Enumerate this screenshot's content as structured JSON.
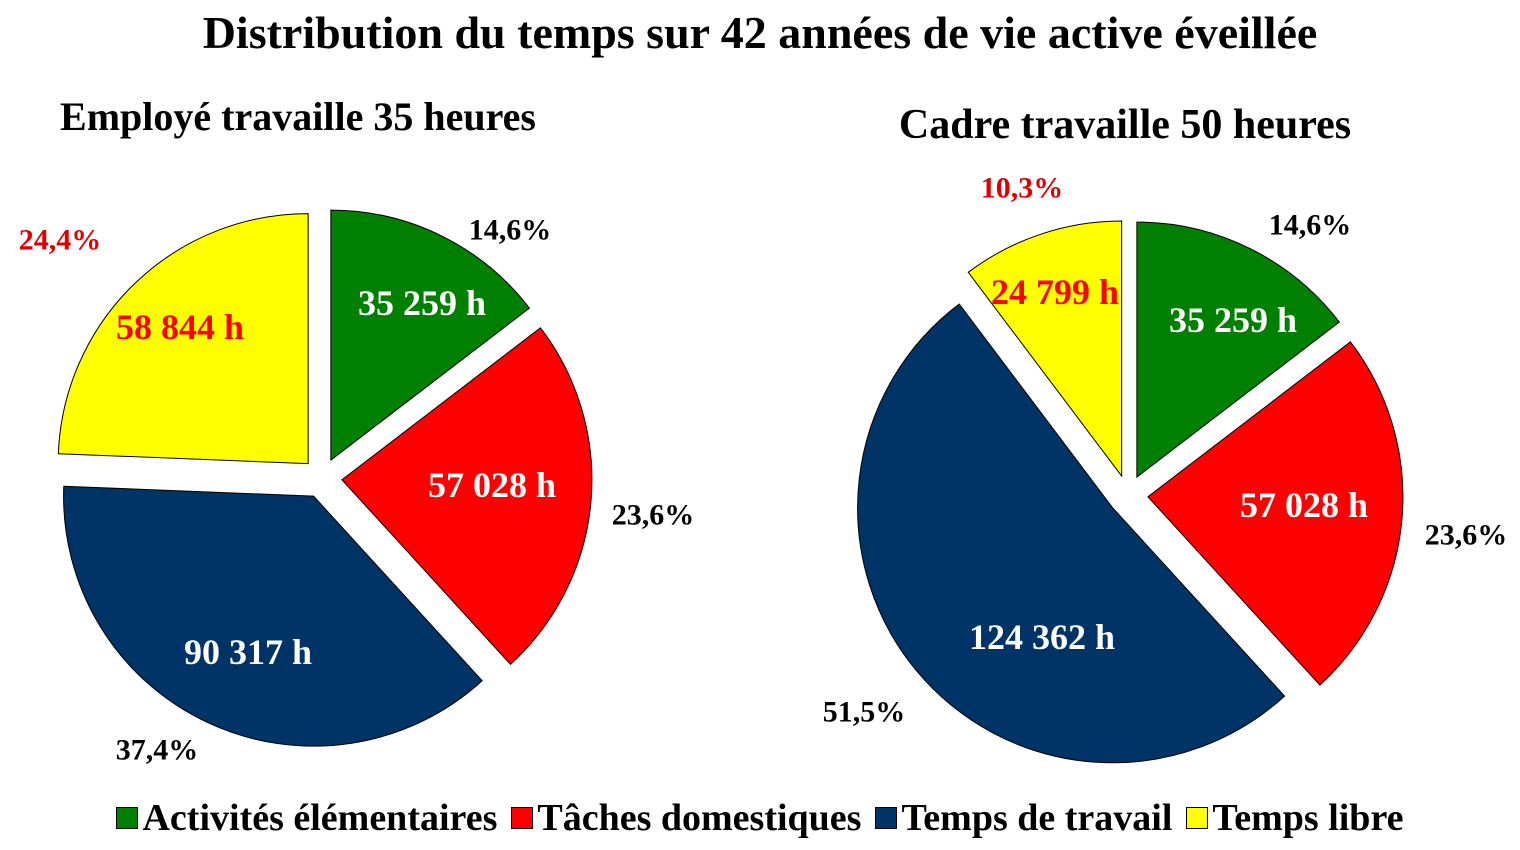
{
  "chart_data": {
    "type": "pie",
    "title": "Distribution du temps sur 42 années de vie active éveillée",
    "legend": {
      "placement": "bottom",
      "entries": [
        "Activités élémentaires",
        "Tâches domestiques",
        "Temps de travail",
        "Temps libre"
      ]
    },
    "colors": [
      "#008000",
      "#ff0000",
      "#003366",
      "#ffff00"
    ],
    "charts": [
      {
        "title": "Employé travaille 35 heures",
        "categories": [
          "Activités élémentaires",
          "Tâches domestiques",
          "Temps de travail",
          "Temps libre"
        ],
        "values": [
          35259,
          57028,
          90317,
          58844
        ],
        "value_labels": [
          "35 259 h",
          "57 028 h",
          "90 317 h",
          "58 844 h"
        ],
        "percent_labels": [
          "14,6%",
          "23,6%",
          "37,4%",
          "24,4%"
        ],
        "percents": [
          14.6,
          23.6,
          37.4,
          24.4
        ]
      },
      {
        "title": "Cadre travaille 50 heures",
        "categories": [
          "Activités élémentaires",
          "Tâches domestiques",
          "Temps de travail",
          "Temps libre"
        ],
        "values": [
          35259,
          57028,
          124362,
          24799
        ],
        "value_labels": [
          "35 259 h",
          "57 028 h",
          "124 362 h",
          "24 799 h"
        ],
        "percent_labels": [
          "14,6%",
          "23,6%",
          "51,5%",
          "10,3%"
        ],
        "percents": [
          14.6,
          23.6,
          51.5,
          10.3
        ]
      }
    ]
  }
}
